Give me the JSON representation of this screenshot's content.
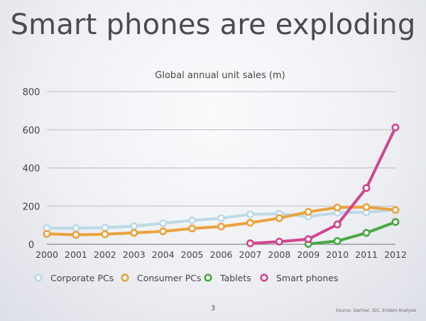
{
  "slide": {
    "title": "Smart phones are exploding",
    "page_number": "3",
    "source": "Source: Gartner, IDC, Enders Analysis"
  },
  "chart_data": {
    "type": "line",
    "title": "Global annual unit sales (m)",
    "xlabel": "",
    "ylabel": "",
    "categories": [
      "2000",
      "2001",
      "2002",
      "2003",
      "2004",
      "2005",
      "2006",
      "2007",
      "2008",
      "2009",
      "2010",
      "2011",
      "2012"
    ],
    "ylim": [
      0,
      800
    ],
    "yticks": [
      0,
      200,
      400,
      600,
      800
    ],
    "grid": true,
    "legend_position": "bottom-left",
    "series": [
      {
        "name": "Corporate PCs",
        "color": "#bcd9e6",
        "values": [
          85,
          85,
          87,
          95,
          110,
          125,
          137,
          157,
          160,
          145,
          165,
          168,
          180
        ]
      },
      {
        "name": "Consumer PCs",
        "color": "#e9a33d",
        "values": [
          55,
          50,
          53,
          60,
          68,
          83,
          93,
          113,
          137,
          170,
          193,
          195,
          180
        ]
      },
      {
        "name": "Tablets",
        "color": "#4aa843",
        "values": [
          null,
          null,
          null,
          null,
          null,
          null,
          null,
          null,
          null,
          2,
          17,
          60,
          117
        ]
      },
      {
        "name": "Smart phones",
        "color": "#d1448f",
        "values": [
          null,
          null,
          null,
          null,
          null,
          null,
          null,
          5,
          14,
          27,
          104,
          295,
          612
        ]
      }
    ]
  }
}
